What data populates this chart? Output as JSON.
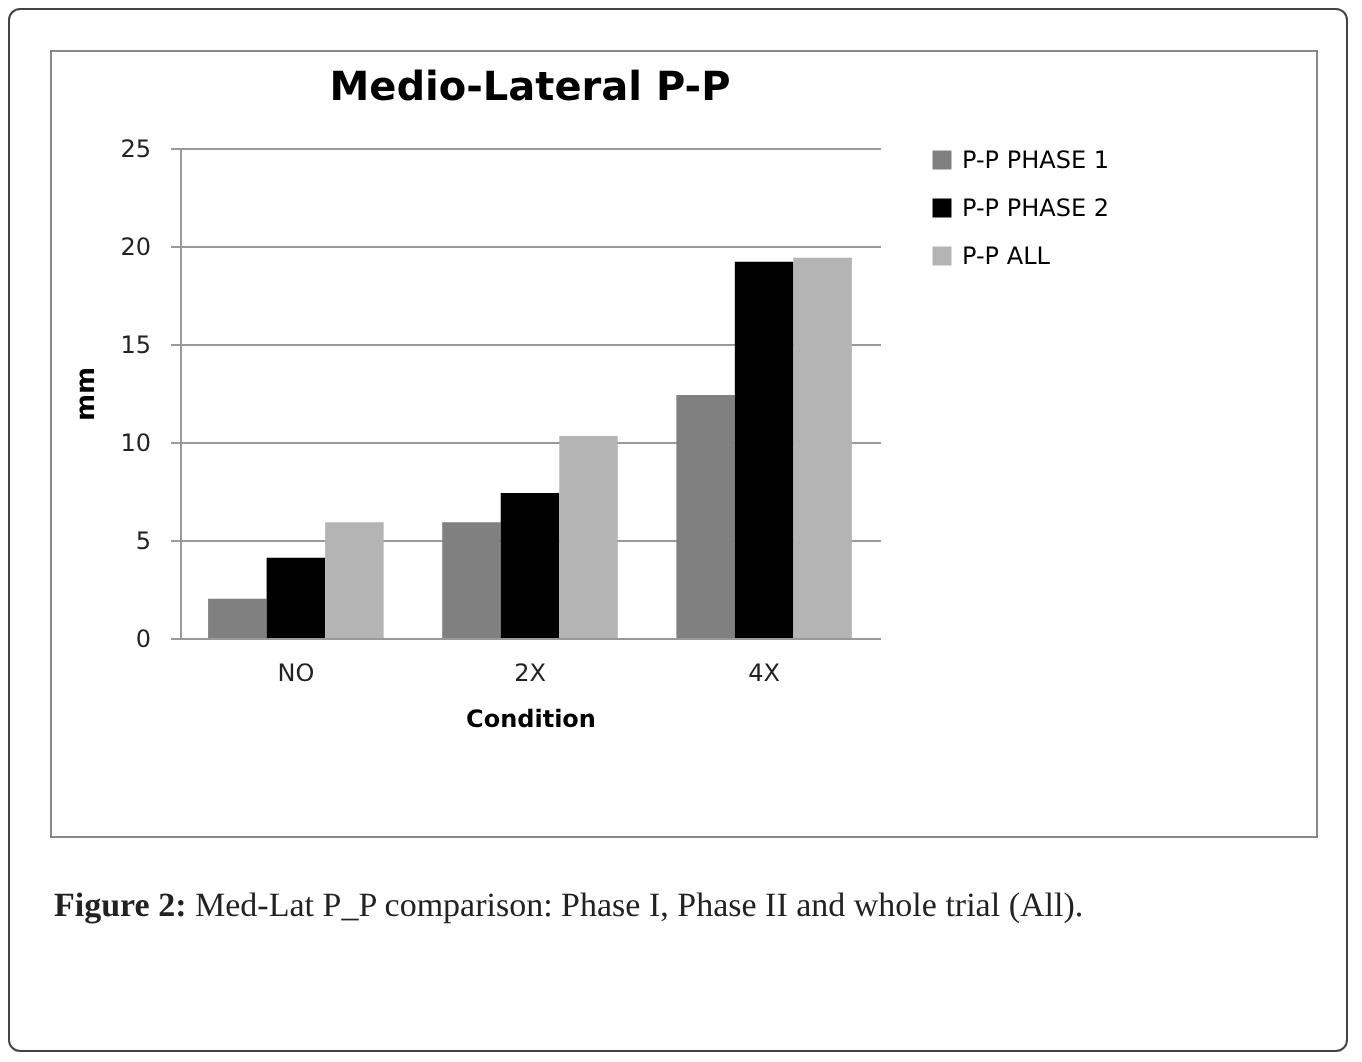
{
  "chart_data": {
    "type": "bar",
    "title": "Medio-Lateral P-P",
    "xlabel": "Condition",
    "ylabel": "mm",
    "categories": [
      "NO",
      "2X",
      "4X"
    ],
    "series": [
      {
        "name": "P-P PHASE 1",
        "color": "#808080",
        "values": [
          2.0,
          5.9,
          12.4
        ]
      },
      {
        "name": "P-P PHASE 2",
        "color": "#000000",
        "values": [
          4.1,
          7.4,
          19.2
        ]
      },
      {
        "name": "P-P ALL",
        "color": "#b4b4b4",
        "values": [
          5.9,
          10.3,
          19.4
        ]
      }
    ],
    "ylim": [
      0,
      25
    ],
    "yticks": [
      0,
      5,
      10,
      15,
      20,
      25
    ],
    "grid": "y",
    "legend": "right",
    "annotations": [
      "Figure 2: Med-Lat P_P comparison: Phase I, Phase II and whole trial (All)."
    ]
  }
}
